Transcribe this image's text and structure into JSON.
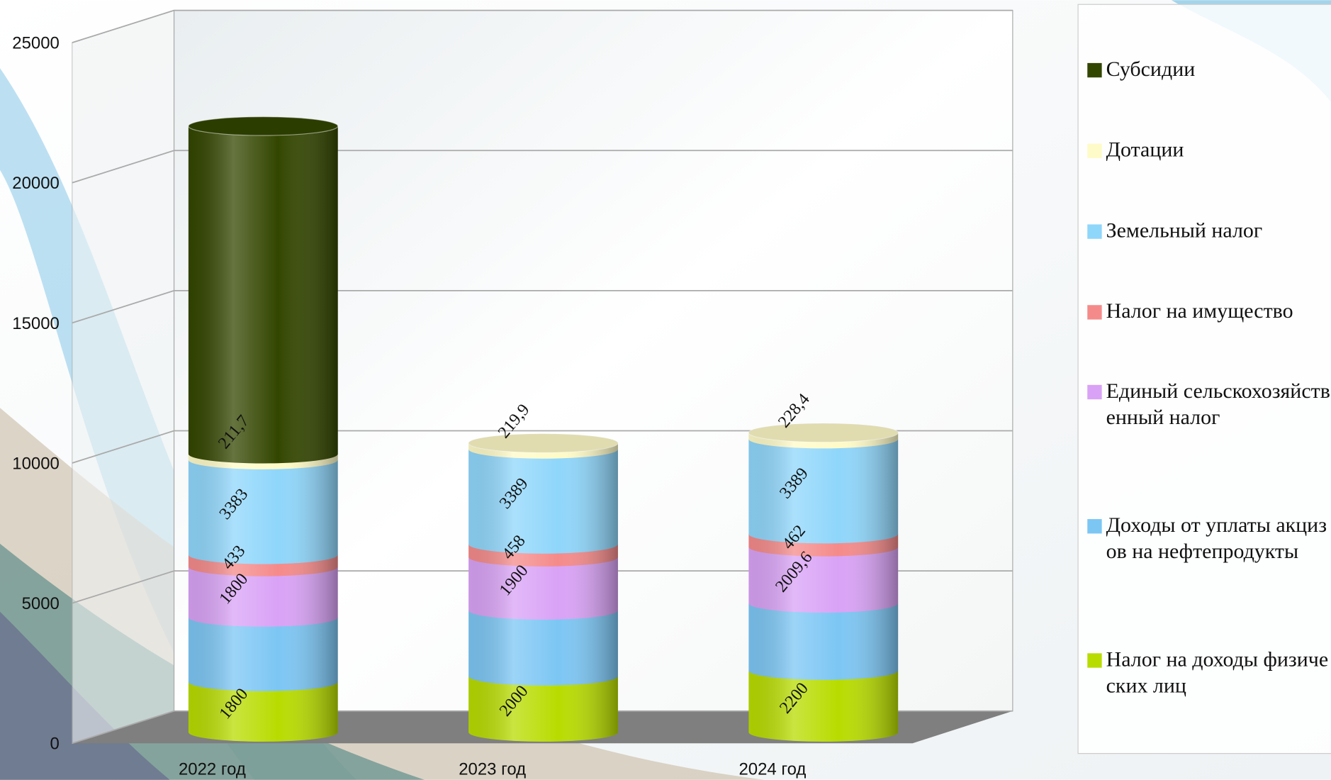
{
  "chart_data": {
    "type": "bar",
    "stacked": true,
    "categories": [
      "2022 год",
      "2023 год",
      "2024 год"
    ],
    "series": [
      {
        "name": "Налог на доходы физических лиц",
        "color": "#b8dc00",
        "values": [
          1800,
          2000,
          2200
        ],
        "value_labels": [
          "1800",
          "2000",
          "2200"
        ]
      },
      {
        "name": "Доходы от уплаты акцизов на нефтепродукты",
        "color": "#7cc6f4",
        "values": [
          2300,
          2350,
          2400
        ]
      },
      {
        "name": "Единый сельскохозяйственный налог",
        "color": "#d9a2f6",
        "values": [
          1800,
          1900,
          2009.6
        ],
        "value_labels": [
          "1800",
          "1900",
          "2009,6"
        ]
      },
      {
        "name": "Налог на имущество",
        "color": "#f58a8a",
        "values": [
          433,
          458,
          462
        ],
        "value_labels": [
          "433",
          "458",
          "462"
        ]
      },
      {
        "name": "Земельный налог",
        "color": "#8fd6fb",
        "values": [
          3383,
          3389,
          3389
        ],
        "value_labels": [
          "3383",
          "3389",
          "3389"
        ]
      },
      {
        "name": "Дотации",
        "color": "#fffbc8",
        "values": [
          211.7,
          219.9,
          228.4
        ],
        "value_labels": [
          "211,7",
          "219,9",
          "228,4"
        ]
      },
      {
        "name": "Субсидии",
        "color": "#334600",
        "values": [
          11700,
          null,
          null
        ]
      }
    ],
    "ylim": [
      0,
      25000
    ],
    "yticks": [
      0,
      5000,
      10000,
      15000,
      20000,
      25000
    ],
    "grid": true,
    "legend": "right"
  }
}
